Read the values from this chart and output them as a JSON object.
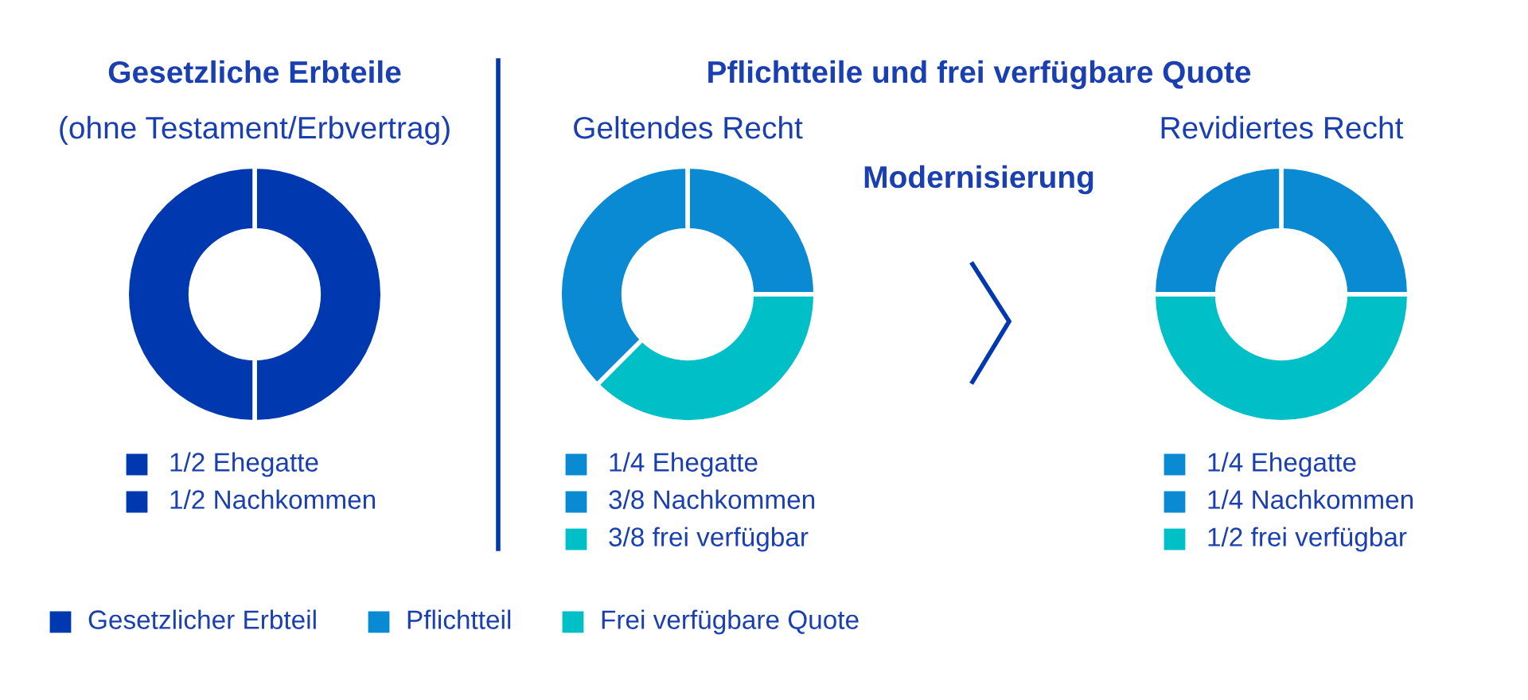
{
  "chart_data": [
    {
      "type": "donut",
      "title": "Gesetzliche Erbteile",
      "subtitle": "(ohne Testament/Erbvertrag)",
      "categories": [
        "1/2 Ehegatte",
        "1/2 Nachkommen"
      ],
      "values": [
        50,
        50
      ],
      "colors": [
        "#0038b0",
        "#0038b0"
      ],
      "legend": "bottom"
    },
    {
      "type": "donut",
      "title": "Pflichtteile und frei verfügbare Quote",
      "subtitle": "Geltendes Recht",
      "annotations": [
        "Modernisierung"
      ],
      "categories": [
        "1/4 Ehegatte",
        "3/8 Nachkommen",
        "3/8 frei verfügbar"
      ],
      "values": [
        25,
        37.5,
        37.5
      ],
      "colors": [
        "#0a8ad2",
        "#0a8ad2",
        "#00bfc6"
      ],
      "legend": "bottom"
    },
    {
      "type": "donut",
      "subtitle": "Revidiertes Recht",
      "categories": [
        "1/4 Ehegatte",
        "1/4 Nachkommen",
        "1/2 frei verfügbar"
      ],
      "values": [
        25,
        25,
        50
      ],
      "colors": [
        "#0a8ad2",
        "#0a8ad2",
        "#00bfc6"
      ],
      "legend": "bottom"
    },
    {
      "type": "other",
      "categories": [
        "Gesetzlicher Erbteil",
        "Pflichtteil",
        "Frei verfügbare Quote"
      ],
      "colors": [
        "#0038b0",
        "#0a8ad2",
        "#00bfc6"
      ]
    }
  ]
}
